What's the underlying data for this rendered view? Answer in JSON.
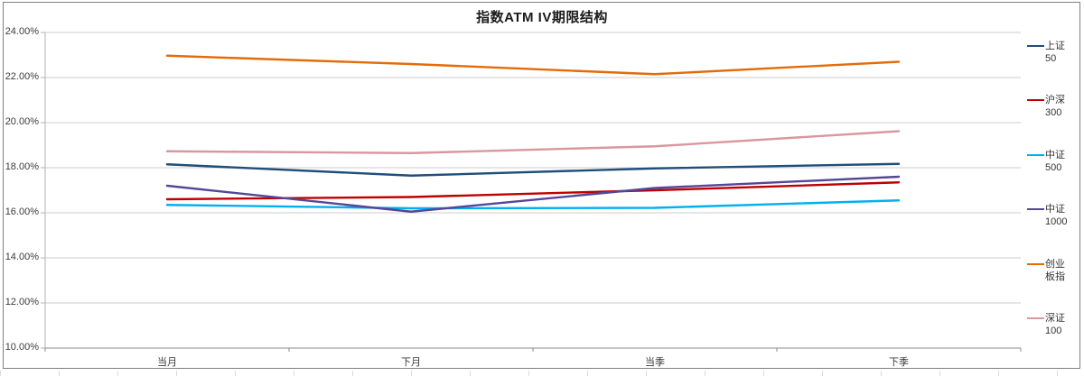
{
  "chart_data": {
    "type": "line",
    "title": "指数ATM IV期限结构",
    "categories": [
      "当月",
      "下月",
      "当季",
      "下季"
    ],
    "y_ticks": [
      "24.00%",
      "22.00%",
      "20.00%",
      "18.00%",
      "16.00%",
      "14.00%",
      "12.00%",
      "10.00%"
    ],
    "ylim": [
      10,
      24
    ],
    "y_step": 2,
    "grid": true,
    "legend_position": "right",
    "series": [
      {
        "name": "上证50",
        "label_lines": [
          "上证",
          "50"
        ],
        "color": "#1F4E79",
        "values": [
          18.15,
          17.65,
          17.97,
          18.17
        ]
      },
      {
        "name": "沪深300",
        "label_lines": [
          "沪深",
          "300"
        ],
        "color": "#C00000",
        "values": [
          16.6,
          16.7,
          17.0,
          17.35
        ]
      },
      {
        "name": "中证500",
        "label_lines": [
          "中证",
          "500"
        ],
        "color": "#00B0F0",
        "values": [
          16.35,
          16.2,
          16.22,
          16.55
        ]
      },
      {
        "name": "中证1000",
        "label_lines": [
          "中证",
          "1000"
        ],
        "color": "#554798",
        "values": [
          17.2,
          16.05,
          17.1,
          17.6
        ]
      },
      {
        "name": "创业板指",
        "label_lines": [
          "创业",
          "板指"
        ],
        "color": "#E36C0A",
        "values": [
          22.97,
          22.6,
          22.15,
          22.7
        ]
      },
      {
        "name": "深证100",
        "label_lines": [
          "深证",
          "100"
        ],
        "color": "#D9979F",
        "values": [
          18.73,
          18.65,
          18.95,
          19.62
        ]
      }
    ],
    "colors": {
      "gridline": "#CCCCCC",
      "y_axis": "#B3B3B3",
      "x_axis": "#8C8C8C",
      "frame_border": "#7F7F7F"
    }
  }
}
